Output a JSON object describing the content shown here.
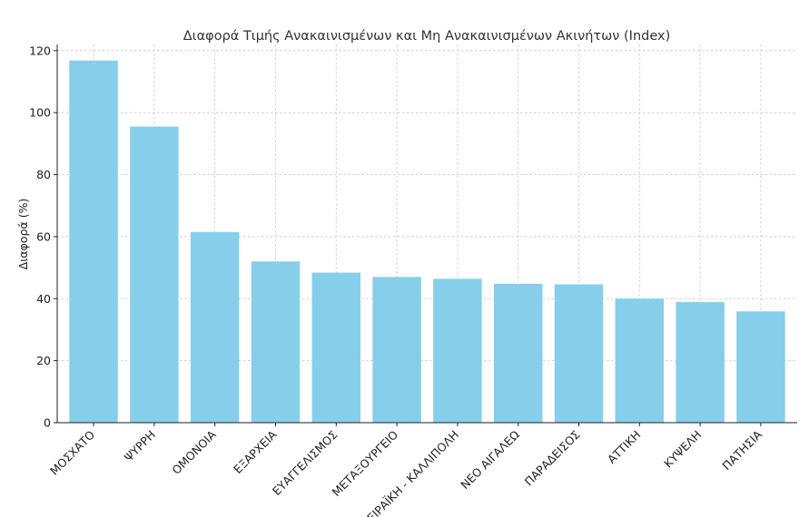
{
  "chart_data": {
    "type": "bar",
    "title": "Διαφορά Τιμής Ανακαινισμένων και Μη Ανακαινισμένων Ακινήτων (Index)",
    "xlabel": "",
    "ylabel": "Διαφορά (%)",
    "categories": [
      "ΜΟΣΧΑΤΟ",
      "ΨΥΡΡΗ",
      "ΟΜΟΝΟΙΑ",
      "ΕΞΑΡΧΕΙΑ",
      "ΕΥΑΓΓΕΛΙΣΜΟΣ",
      "ΜΕΤΑΞΟΥΡΓΕΙΟ",
      "ΠΕΙΡΑΪΚΗ - ΚΑΛΛΙΠΟΛΗ",
      "ΝΕΟ ΑΙΓΑΛΕΩ",
      "ΠΑΡΑΔΕΙΣΟΣ",
      "ΑΤΤΙΚΗ",
      "ΚΥΨΕΛΗ",
      "ΠΑΤΗΣΙΑ"
    ],
    "values": [
      116.8,
      95.5,
      61.5,
      52.0,
      48.4,
      47.0,
      46.4,
      44.8,
      44.6,
      40.0,
      38.9,
      35.9
    ],
    "ylim": [
      0,
      122
    ],
    "yticks": [
      0,
      20,
      40,
      60,
      80,
      100,
      120
    ],
    "grid": true,
    "bar_color": "#87CEEB"
  }
}
